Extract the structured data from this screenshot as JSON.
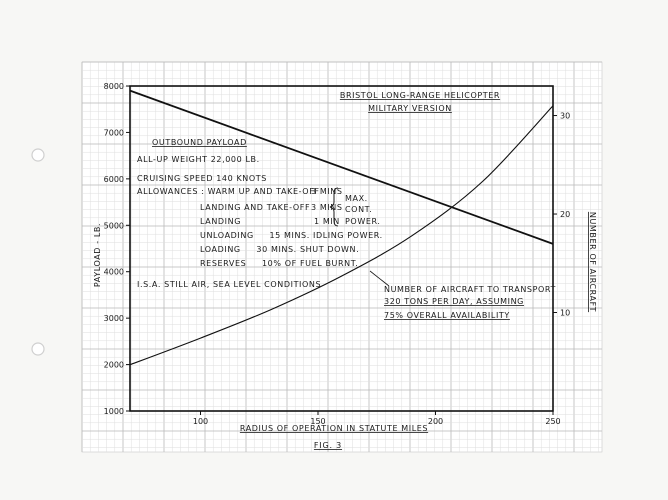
{
  "chart_data": {
    "type": "line",
    "title": "BRISTOL LONG-RANGE HELICOPTER",
    "subtitle": "MILITARY VERSION",
    "figure_label": "FIG. 3",
    "xlabel": "RADIUS OF OPERATION IN STATUTE MILES",
    "ylabel": "PAYLOAD - LB.",
    "y2label": "NUMBER OF AIRCRAFT",
    "xlim": [
      70,
      250
    ],
    "ylim": [
      1000,
      8000
    ],
    "y2lim": [
      0,
      33
    ],
    "x_ticks": [
      100,
      150,
      200,
      250
    ],
    "y_ticks": [
      1000,
      2000,
      3000,
      4000,
      5000,
      6000,
      7000,
      8000
    ],
    "y2_ticks": [
      10,
      20,
      30
    ],
    "grid": true,
    "series": [
      {
        "name": "OUTBOUND PAYLOAD",
        "axis": "left",
        "x": [
          70,
          250
        ],
        "y": [
          7900,
          4600
        ]
      },
      {
        "name": "NUMBER OF AIRCRAFT TO TRANSPORT 320 TONS PER DAY, ASSUMING 75% OVERALL AVAILABILITY",
        "axis": "right",
        "x": [
          70,
          100,
          130,
          160,
          190,
          220,
          250
        ],
        "y": [
          4.7,
          7.4,
          10.3,
          13.7,
          17.8,
          23.3,
          31.0
        ]
      }
    ],
    "annotations": {
      "outbound_label": "OUTBOUND PAYLOAD",
      "aircraft_label_lines": [
        "NUMBER OF AIRCRAFT TO TRANSPORT",
        "320 TONS PER DAY, ASSUMING",
        "75% OVERALL AVAILABILITY"
      ],
      "all_up_weight": "ALL-UP WEIGHT 22,000 LB.",
      "cruising_speed": "CRUISING SPEED 140 KNOTS",
      "allowances_lines": [
        {
          "label": "ALLOWANCES : WARM UP AND TAKE-OFF",
          "value": "3 MINS"
        },
        {
          "label": "LANDING AND TAKE-OFF",
          "value": "3 MINS"
        },
        {
          "label": "LANDING",
          "value": "1 MIN"
        }
      ],
      "max_cont_power": [
        "MAX.",
        "CONT.",
        "POWER."
      ],
      "unloading": "UNLOADING     15 MINS. IDLING POWER.",
      "loading": "LOADING     30 MINS. SHUT DOWN.",
      "reserves": "RESERVES     10% OF FUEL BURNT.",
      "isa": "I.S.A. STILL AIR, SEA LEVEL CONDITIONS"
    }
  }
}
